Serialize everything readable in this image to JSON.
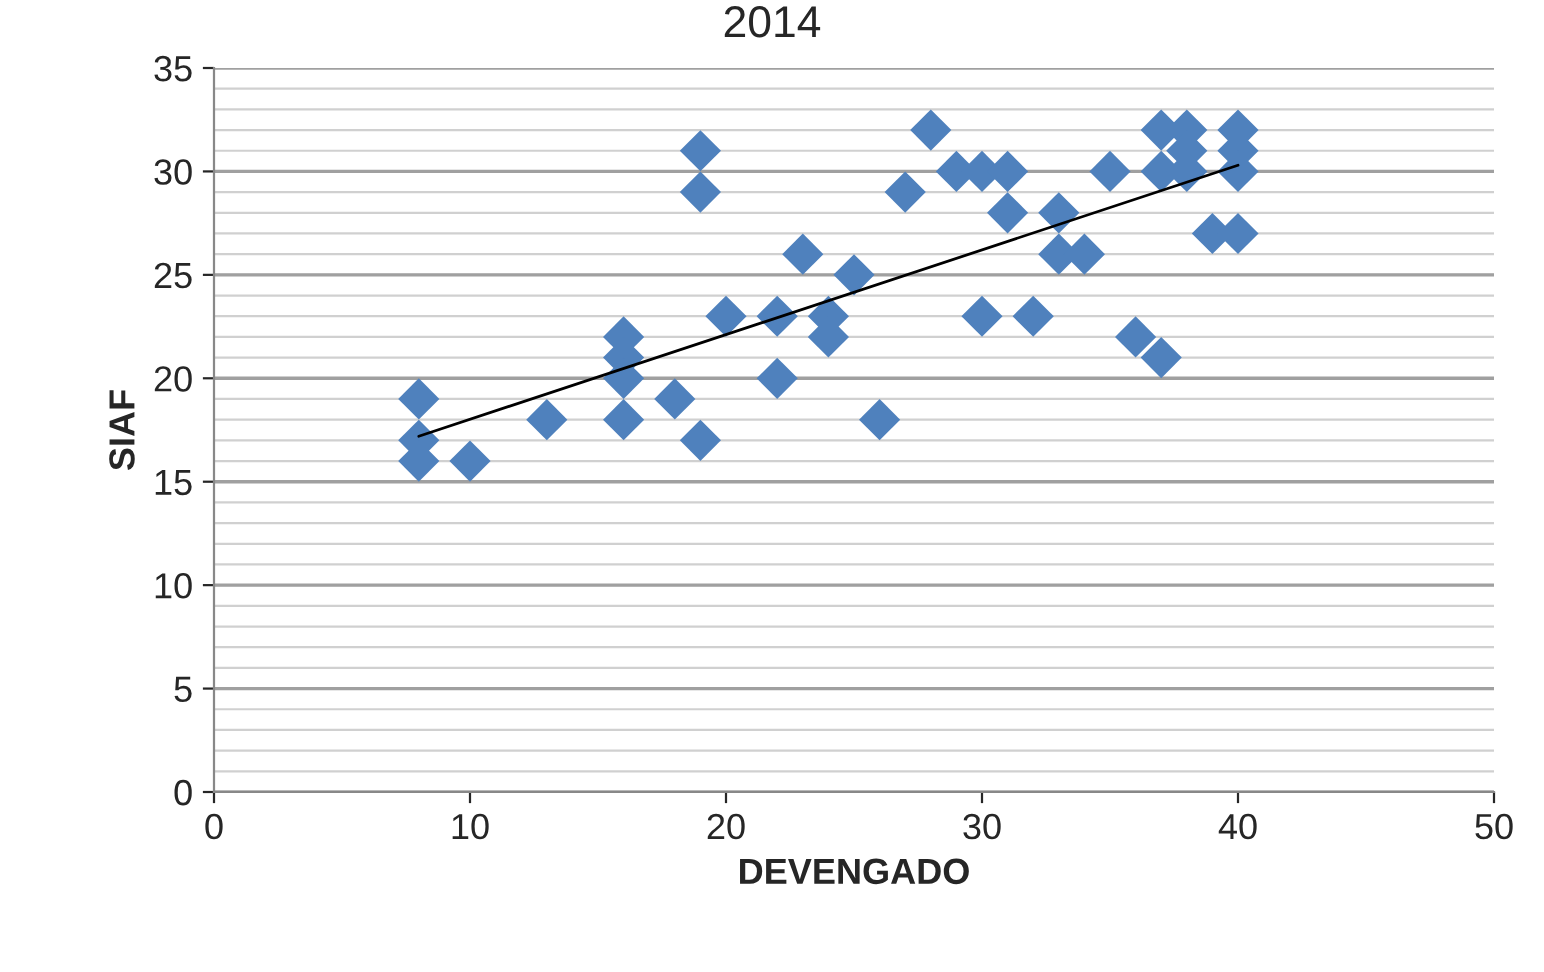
{
  "chart_data": {
    "type": "scatter",
    "title": "2014",
    "xlabel": "DEVENGADO",
    "ylabel": "SIAF",
    "series": [
      {
        "color": "#4f81bd",
        "marker": "diamond",
        "x": [
          8,
          8,
          8,
          10,
          13,
          16,
          16,
          16,
          16,
          18,
          19,
          19,
          19,
          20,
          22,
          22,
          23,
          24,
          24,
          25,
          26,
          27,
          28,
          29,
          30,
          30,
          31,
          31,
          32,
          33,
          33,
          34,
          35,
          36,
          37,
          37,
          37,
          38,
          38,
          38,
          39,
          40,
          40,
          40,
          40
        ],
        "values": [
          19,
          17,
          16,
          16,
          18,
          22,
          21,
          20,
          18,
          19,
          31,
          29,
          17,
          23,
          23,
          20,
          26,
          23,
          22,
          25,
          18,
          29,
          32,
          30,
          30,
          23,
          30,
          28,
          23,
          28,
          26,
          26,
          30,
          22,
          21,
          32,
          30,
          32,
          31,
          30,
          27,
          32,
          31,
          30,
          27
        ]
      },
      {
        "type": "line",
        "color": "#000000",
        "x": [
          8,
          40
        ],
        "values": [
          17.2,
          30.3
        ]
      }
    ],
    "xlim": [
      0,
      50
    ],
    "xticks": [
      0,
      10,
      20,
      30,
      40,
      50
    ],
    "ylim": [
      0,
      35
    ],
    "yticks": [
      0,
      5,
      10,
      15,
      20,
      25,
      30,
      35
    ],
    "grid": "y",
    "legend": false
  }
}
